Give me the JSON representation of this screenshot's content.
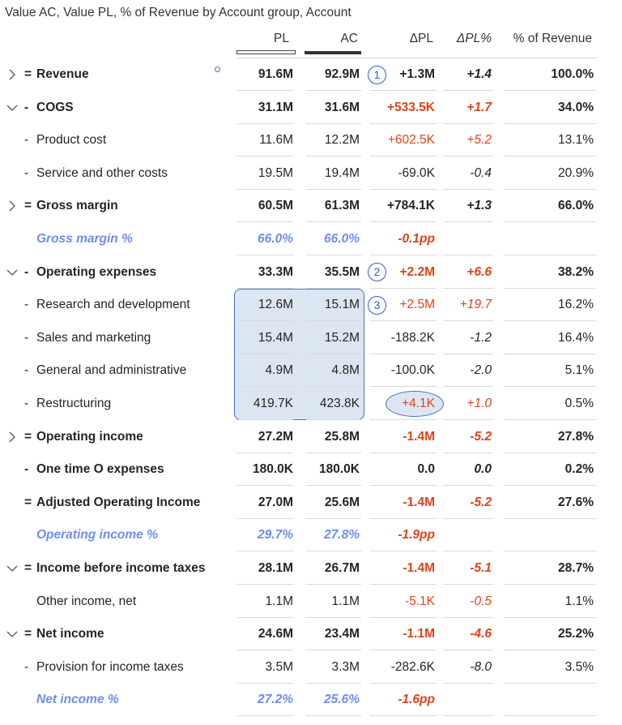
{
  "title": "Value AC, Value PL, % of Revenue by Account group, Account",
  "headers": {
    "pl": "PL",
    "ac": "AC",
    "dpl": "ΔPL",
    "dplp": "ΔPL%",
    "rev": "% of Revenue"
  },
  "colors": {
    "accent": "#4472c4",
    "negative": "#e0431a",
    "pct_row": "#6f8cf0",
    "selection": "#dce6f2"
  },
  "callouts": [
    "1",
    "2",
    "3"
  ],
  "rows": [
    {
      "expander": "chevron-right",
      "prefix": "=",
      "label": "Revenue",
      "style": "bold",
      "pl": "91.6M",
      "ac": "92.9M",
      "dpl": "+1.3M",
      "dplp": "+1.4",
      "rev": "100.0%",
      "neg": false
    },
    {
      "expander": "chevron-down",
      "prefix": "-",
      "label": "COGS",
      "style": "bold",
      "pl": "31.1M",
      "ac": "31.6M",
      "dpl": "+533.5K",
      "dplp": "+1.7",
      "rev": "34.0%",
      "neg": true
    },
    {
      "expander": "",
      "prefix": "-",
      "label": "Product cost",
      "style": "normal",
      "pl": "11.6M",
      "ac": "12.2M",
      "dpl": "+602.5K",
      "dplp": "+5.2",
      "rev": "13.1%",
      "neg": true
    },
    {
      "expander": "",
      "prefix": "-",
      "label": "Service and other costs",
      "style": "normal",
      "pl": "19.5M",
      "ac": "19.4M",
      "dpl": "-69.0K",
      "dplp": "-0.4",
      "rev": "20.9%",
      "neg": false
    },
    {
      "expander": "chevron-right",
      "prefix": "=",
      "label": "Gross margin",
      "style": "bold",
      "pl": "60.5M",
      "ac": "61.3M",
      "dpl": "+784.1K",
      "dplp": "+1.3",
      "rev": "66.0%",
      "neg": false
    },
    {
      "expander": "",
      "prefix": "",
      "label": "Gross margin %",
      "style": "pct",
      "pl": "66.0%",
      "ac": "66.0%",
      "dpl": "-0.1pp",
      "dplp": "",
      "rev": "",
      "neg": true
    },
    {
      "expander": "chevron-down",
      "prefix": "-",
      "label": "Operating expenses",
      "style": "bold",
      "pl": "33.3M",
      "ac": "35.5M",
      "dpl": "+2.2M",
      "dplp": "+6.6",
      "rev": "38.2%",
      "neg": true
    },
    {
      "expander": "",
      "prefix": "-",
      "label": "Research and development",
      "style": "normal",
      "pl": "12.6M",
      "ac": "15.1M",
      "dpl": "+2.5M",
      "dplp": "+19.7",
      "rev": "16.2%",
      "neg": true
    },
    {
      "expander": "",
      "prefix": "-",
      "label": "Sales and marketing",
      "style": "normal",
      "pl": "15.4M",
      "ac": "15.2M",
      "dpl": "-188.2K",
      "dplp": "-1.2",
      "rev": "16.4%",
      "neg": false
    },
    {
      "expander": "",
      "prefix": "-",
      "label": "General and administrative",
      "style": "normal",
      "pl": "4.9M",
      "ac": "4.8M",
      "dpl": "-100.0K",
      "dplp": "-2.0",
      "rev": "5.1%",
      "neg": false
    },
    {
      "expander": "",
      "prefix": "-",
      "label": "Restructuring",
      "style": "normal",
      "pl": "419.7K",
      "ac": "423.8K",
      "dpl": "+4.1K",
      "dplp": "+1.0",
      "rev": "0.5%",
      "neg": true
    },
    {
      "expander": "chevron-right",
      "prefix": "=",
      "label": "Operating income",
      "style": "bold",
      "pl": "27.2M",
      "ac": "25.8M",
      "dpl": "-1.4M",
      "dplp": "-5.2",
      "rev": "27.8%",
      "neg": true
    },
    {
      "expander": "",
      "prefix": "-",
      "label": "One time O expenses",
      "style": "bold",
      "pl": "180.0K",
      "ac": "180.0K",
      "dpl": "0.0",
      "dplp": "0.0",
      "rev": "0.2%",
      "neg": false
    },
    {
      "expander": "",
      "prefix": "=",
      "label": "Adjusted Operating Income",
      "style": "bold",
      "pl": "27.0M",
      "ac": "25.6M",
      "dpl": "-1.4M",
      "dplp": "-5.2",
      "rev": "27.6%",
      "neg": true
    },
    {
      "expander": "",
      "prefix": "",
      "label": "Operating income %",
      "style": "pct",
      "pl": "29.7%",
      "ac": "27.8%",
      "dpl": "-1.9pp",
      "dplp": "",
      "rev": "",
      "neg": true
    },
    {
      "expander": "chevron-down",
      "prefix": "=",
      "label": "Income before income taxes",
      "style": "bold",
      "pl": "28.1M",
      "ac": "26.7M",
      "dpl": "-1.4M",
      "dplp": "-5.1",
      "rev": "28.7%",
      "neg": true
    },
    {
      "expander": "",
      "prefix": "",
      "label": "Other income, net",
      "style": "normal",
      "pl": "1.1M",
      "ac": "1.1M",
      "dpl": "-5.1K",
      "dplp": "-0.5",
      "rev": "1.1%",
      "neg": true
    },
    {
      "expander": "chevron-down",
      "prefix": "=",
      "label": "Net income",
      "style": "bold",
      "pl": "24.6M",
      "ac": "23.4M",
      "dpl": "-1.1M",
      "dplp": "-4.6",
      "rev": "25.2%",
      "neg": true
    },
    {
      "expander": "",
      "prefix": "-",
      "label": "Provision for income taxes",
      "style": "normal",
      "pl": "3.5M",
      "ac": "3.3M",
      "dpl": "-282.6K",
      "dplp": "-8.0",
      "rev": "3.5%",
      "neg": false
    },
    {
      "expander": "",
      "prefix": "",
      "label": "Net income %",
      "style": "pct",
      "pl": "27.2%",
      "ac": "25.6%",
      "dpl": "-1.6pp",
      "dplp": "",
      "rev": "",
      "neg": true
    }
  ]
}
